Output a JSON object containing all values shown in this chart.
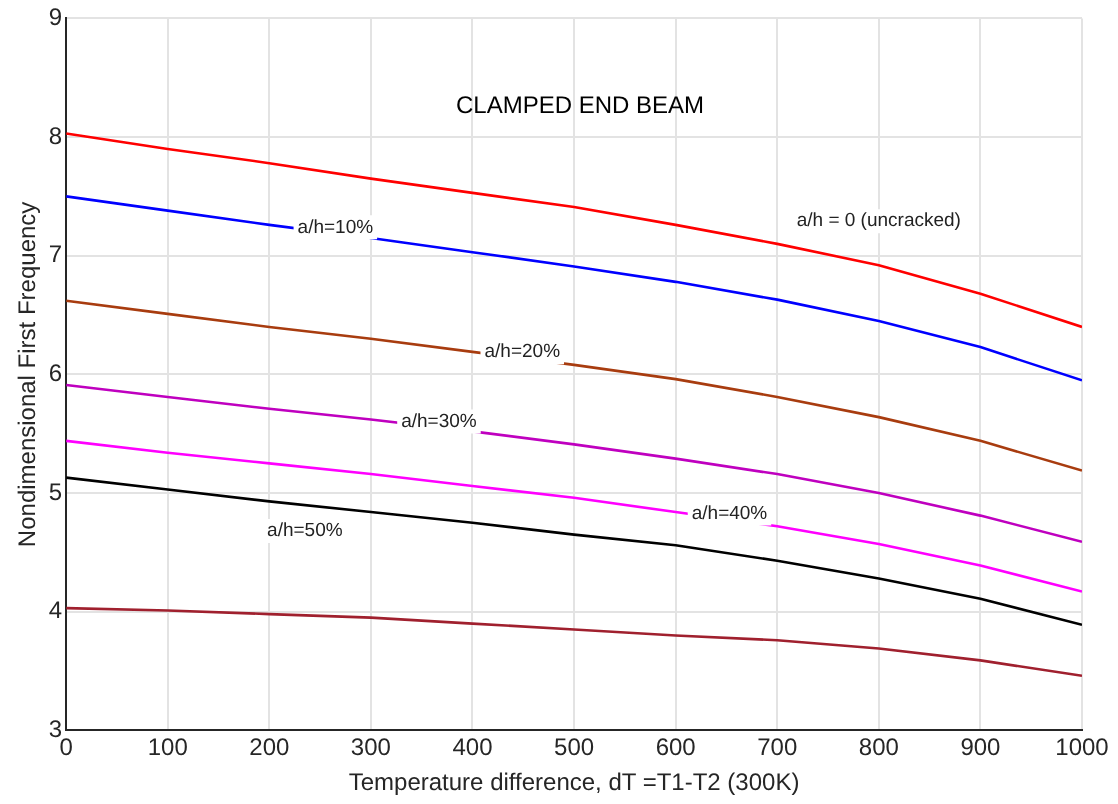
{
  "chart_data": {
    "type": "line",
    "title": "CLAMPED END BEAM",
    "xlabel": "Temperature difference, dT =T1-T2 (300K)",
    "ylabel": "Nondimensional First Frequency",
    "x": [
      0,
      100,
      200,
      300,
      400,
      500,
      600,
      700,
      800,
      900,
      1000
    ],
    "series": [
      {
        "name": "a/h = 0 (uncracked)",
        "color": "#ff0000",
        "values": [
          8.03,
          7.9,
          7.78,
          7.65,
          7.53,
          7.41,
          7.26,
          7.1,
          6.92,
          6.68,
          6.4
        ]
      },
      {
        "name": "a/h=10%",
        "color": "#0000ff",
        "values": [
          7.5,
          7.38,
          7.26,
          7.15,
          7.03,
          6.91,
          6.78,
          6.63,
          6.45,
          6.23,
          5.95
        ]
      },
      {
        "name": "a/h=20%",
        "color": "#a83c0f",
        "values": [
          6.62,
          6.51,
          6.4,
          6.3,
          6.19,
          6.08,
          5.96,
          5.81,
          5.64,
          5.44,
          5.19
        ]
      },
      {
        "name": "a/h=30%",
        "color": "#bf00bf",
        "values": [
          5.91,
          5.81,
          5.71,
          5.62,
          5.52,
          5.41,
          5.29,
          5.16,
          5.0,
          4.81,
          4.59
        ]
      },
      {
        "name": "a/h=40%",
        "color": "#ff00ff",
        "values": [
          5.44,
          5.34,
          5.25,
          5.16,
          5.06,
          4.96,
          4.84,
          4.72,
          4.57,
          4.39,
          4.17
        ]
      },
      {
        "name": "a/h=50%",
        "color": "#000000",
        "values": [
          5.13,
          5.03,
          4.93,
          4.84,
          4.75,
          4.65,
          4.56,
          4.43,
          4.28,
          4.11,
          3.89
        ]
      },
      {
        "color": "#a0202e",
        "values": [
          4.03,
          4.01,
          3.98,
          3.95,
          3.9,
          3.85,
          3.8,
          3.76,
          3.69,
          3.59,
          3.46
        ]
      }
    ],
    "xlim": [
      0,
      1000
    ],
    "xticks": [
      0,
      100,
      200,
      300,
      400,
      500,
      600,
      700,
      800,
      900,
      1000
    ],
    "ylim": [
      3,
      9
    ],
    "yticks": [
      3,
      4,
      5,
      6,
      7,
      8,
      9
    ],
    "grid": true,
    "legend": false,
    "marker": "none",
    "line_style": "solid"
  }
}
